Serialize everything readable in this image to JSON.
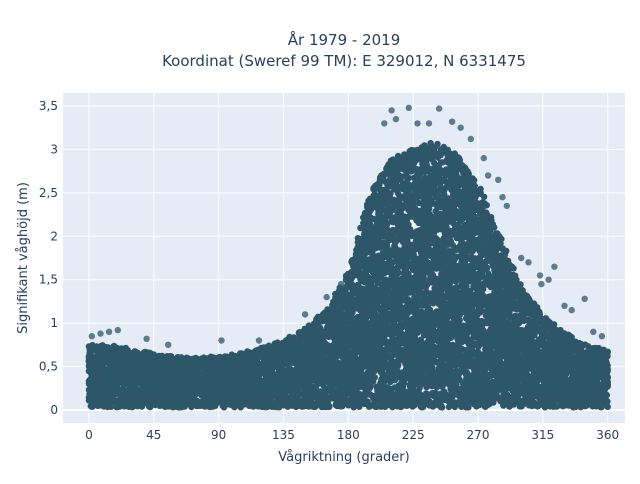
{
  "chart_data": {
    "type": "scatter",
    "title_line1": "År 1979 - 2019",
    "title_line2": "Koordinat (Sweref 99 TM): E 329012, N 6331475",
    "xlabel": "Vågriktning (grader)",
    "ylabel": "Signifikant våghöjd (m)",
    "xlim": [
      -18,
      372
    ],
    "ylim": [
      -0.15,
      3.65
    ],
    "x_ticks": [
      0,
      45,
      90,
      135,
      180,
      225,
      270,
      315,
      360
    ],
    "x_tick_labels": [
      "0",
      "45",
      "90",
      "135",
      "180",
      "225",
      "270",
      "315",
      "360"
    ],
    "y_ticks": [
      0,
      0.5,
      1,
      1.5,
      2,
      2.5,
      3,
      3.5
    ],
    "y_tick_labels": [
      "0",
      "0,5",
      "1",
      "1,5",
      "2",
      "2,5",
      "3",
      "3,5"
    ],
    "grid": true,
    "marker_color": "#2e5669",
    "background_color": "#e5ecf6",
    "envelope": {
      "direction": [
        0,
        15,
        30,
        45,
        60,
        75,
        90,
        105,
        120,
        135,
        150,
        165,
        180,
        195,
        210,
        225,
        240,
        255,
        270,
        285,
        300,
        315,
        330,
        345,
        360
      ],
      "max_height": [
        0.75,
        0.75,
        0.7,
        0.65,
        0.62,
        0.6,
        0.62,
        0.65,
        0.72,
        0.8,
        0.95,
        1.15,
        1.6,
        2.5,
        2.9,
        3.0,
        3.1,
        2.95,
        2.6,
        2.0,
        1.4,
        1.1,
        0.9,
        0.75,
        0.7
      ]
    },
    "outliers": [
      {
        "x": 2,
        "y": 0.85
      },
      {
        "x": 8,
        "y": 0.88
      },
      {
        "x": 14,
        "y": 0.9
      },
      {
        "x": 20,
        "y": 0.92
      },
      {
        "x": 40,
        "y": 0.82
      },
      {
        "x": 55,
        "y": 0.75
      },
      {
        "x": 92,
        "y": 0.8
      },
      {
        "x": 118,
        "y": 0.8
      },
      {
        "x": 150,
        "y": 1.1
      },
      {
        "x": 165,
        "y": 1.3
      },
      {
        "x": 175,
        "y": 1.45
      },
      {
        "x": 205,
        "y": 3.3
      },
      {
        "x": 210,
        "y": 3.45
      },
      {
        "x": 213,
        "y": 3.35
      },
      {
        "x": 222,
        "y": 3.48
      },
      {
        "x": 228,
        "y": 3.3
      },
      {
        "x": 236,
        "y": 3.3
      },
      {
        "x": 243,
        "y": 3.47
      },
      {
        "x": 252,
        "y": 3.32
      },
      {
        "x": 258,
        "y": 3.25
      },
      {
        "x": 265,
        "y": 3.12
      },
      {
        "x": 274,
        "y": 2.9
      },
      {
        "x": 277,
        "y": 2.7
      },
      {
        "x": 284,
        "y": 2.65
      },
      {
        "x": 287,
        "y": 2.45
      },
      {
        "x": 290,
        "y": 2.35
      },
      {
        "x": 300,
        "y": 1.75
      },
      {
        "x": 305,
        "y": 1.7
      },
      {
        "x": 313,
        "y": 1.55
      },
      {
        "x": 314,
        "y": 1.45
      },
      {
        "x": 319,
        "y": 1.5
      },
      {
        "x": 323,
        "y": 1.65
      },
      {
        "x": 330,
        "y": 1.2
      },
      {
        "x": 335,
        "y": 1.15
      },
      {
        "x": 344,
        "y": 1.28
      },
      {
        "x": 350,
        "y": 0.9
      },
      {
        "x": 356,
        "y": 0.85
      }
    ]
  }
}
